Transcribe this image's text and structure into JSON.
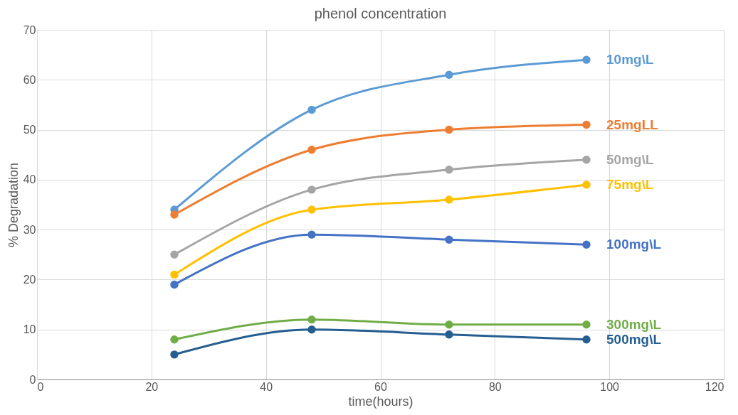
{
  "chart_data": {
    "type": "line",
    "title": "phenol concentration",
    "xlabel": "time(hours)",
    "ylabel": "% Degradation",
    "x": [
      24,
      48,
      72,
      96
    ],
    "series": [
      {
        "name": "10mg\\L",
        "color": "#5b9bd5",
        "values": [
          34,
          54,
          61,
          64
        ]
      },
      {
        "name": "25mgLL",
        "color": "#ed7d31",
        "values": [
          33,
          46,
          50,
          51
        ]
      },
      {
        "name": "50mg\\L",
        "color": "#a5a5a5",
        "values": [
          25,
          38,
          42,
          44
        ]
      },
      {
        "name": "75mg\\L",
        "color": "#ffc000",
        "values": [
          21,
          34,
          36,
          39
        ]
      },
      {
        "name": "100mg\\L",
        "color": "#4472c4",
        "values": [
          19,
          29,
          28,
          27
        ]
      },
      {
        "name": "300mg\\L",
        "color": "#70ad47",
        "values": [
          8,
          12,
          11,
          11
        ]
      },
      {
        "name": "500mg\\L",
        "color": "#255e91",
        "values": [
          5,
          10,
          9,
          8
        ]
      }
    ],
    "xlim": [
      0,
      120
    ],
    "xticks": [
      0,
      20,
      40,
      60,
      80,
      100,
      120
    ],
    "ylim": [
      0,
      70
    ],
    "yticks": [
      0,
      10,
      20,
      30,
      40,
      50,
      60,
      70
    ],
    "grid": true,
    "legend": false,
    "marker": "circle",
    "line_style": "solid"
  }
}
